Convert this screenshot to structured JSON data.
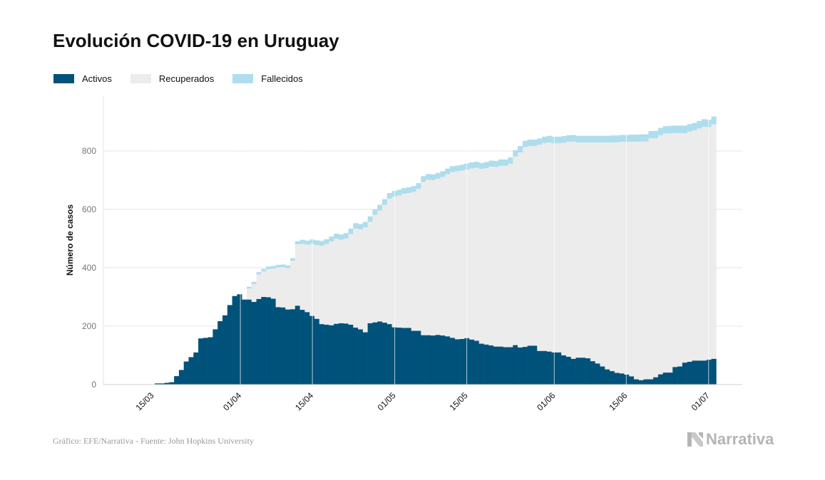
{
  "title": "Evolución COVID-19 en Uruguay",
  "legend": [
    {
      "label": "Activos",
      "color": "#01527a"
    },
    {
      "label": "Recuperados",
      "color": "#ececec"
    },
    {
      "label": "Fallecidos",
      "color": "#aedeed"
    }
  ],
  "footer": "Gráfico: EFE/Narrativa - Fuente: John Hopkins University",
  "logo_text": "Narrativa",
  "chart_data": {
    "type": "area",
    "title": "Evolución COVID-19 en Uruguay",
    "ylabel": "Número de casos",
    "xlabel": "",
    "ylim": [
      0,
      960
    ],
    "yticks": [
      0,
      200,
      400,
      600,
      800
    ],
    "grid": true,
    "legend_position": "top-left",
    "stacked": true,
    "x_start": "2020-03-13",
    "x_end": "2020-07-02",
    "xtick_labels": [
      {
        "date": "2020-03-15",
        "label": "15/03"
      },
      {
        "date": "2020-04-01",
        "label": "01/04"
      },
      {
        "date": "2020-04-15",
        "label": "15/04"
      },
      {
        "date": "2020-05-01",
        "label": "01/05"
      },
      {
        "date": "2020-05-15",
        "label": "15/05"
      },
      {
        "date": "2020-06-01",
        "label": "01/06"
      },
      {
        "date": "2020-06-15",
        "label": "15/06"
      },
      {
        "date": "2020-07-01",
        "label": "01/07"
      }
    ],
    "series": [
      {
        "name": "Activos",
        "color": "#01527a",
        "values": [
          [
            0,
            0,
            0,
            4,
            4,
            6,
            8,
            29,
            50,
            79,
            94,
            110,
            158,
            160,
            162,
            189,
            217,
            237,
            272,
            303,
            309,
            291,
            291,
            283,
            293,
            300,
            299,
            294,
            265,
            264,
            257,
            258,
            270,
            256,
            248,
            235,
            225,
            207,
            205,
            203,
            208,
            210,
            209,
            205,
            195,
            189,
            179,
            210,
            213,
            216,
            212,
            207,
            196,
            195,
            194,
            194,
            184,
            184,
            169,
            169,
            168,
            170,
            168,
            165,
            160,
            155,
            156,
            159,
            154,
            150,
            140,
            137,
            134,
            130,
            130,
            128,
            128,
            135,
            127,
            129,
            133,
            133,
            115,
            115,
            113,
            110,
            110,
            100,
            95,
            88,
            92,
            92,
            90,
            80,
            72,
            62,
            52,
            46,
            40,
            38,
            34,
            28,
            18,
            15,
            18,
            18,
            25,
            35,
            41,
            41,
            60,
            62,
            75,
            78,
            82,
            82,
            82,
            85,
            88
          ]
        ]
      },
      {
        "name": "Recuperados",
        "color": "#ececec",
        "values": [
          [
            0,
            0,
            0,
            0,
            0,
            0,
            0,
            0,
            0,
            0,
            0,
            0,
            0,
            0,
            0,
            0,
            0,
            0,
            0,
            0,
            0,
            0,
            38,
            61,
            84,
            87,
            96,
            103,
            136,
            138,
            142,
            166,
            210,
            226,
            231,
            246,
            253,
            268,
            276,
            287,
            291,
            286,
            291,
            310,
            339,
            342,
            359,
            347,
            368,
            380,
            403,
            429,
            447,
            452,
            459,
            462,
            476,
            486,
            525,
            532,
            532,
            535,
            543,
            555,
            568,
            575,
            577,
            577,
            586,
            592,
            598,
            604,
            612,
            615,
            619,
            621,
            628,
            646,
            668,
            684,
            684,
            684,
            706,
            712,
            716,
            716,
            716,
            728,
            736,
            744,
            737,
            737,
            739,
            749,
            757,
            767,
            777,
            783,
            789,
            793,
            797,
            803,
            813,
            817,
            814,
            825,
            819,
            819,
            819,
            819,
            801,
            799,
            786,
            788,
            788,
            795,
            801,
            796,
            803
          ]
        ]
      },
      {
        "name": "Fallecidos",
        "color": "#aedeed",
        "values": [
          [
            0,
            0,
            0,
            0,
            0,
            0,
            0,
            0,
            0,
            0,
            0,
            0,
            0,
            0,
            1,
            1,
            1,
            1,
            1,
            1,
            1,
            1,
            6,
            8,
            8,
            9,
            9,
            9,
            9,
            9,
            9,
            9,
            11,
            14,
            14,
            16,
            16,
            17,
            17,
            17,
            18,
            18,
            19,
            19,
            19,
            19,
            19,
            19,
            19,
            20,
            20,
            20,
            20,
            20,
            20,
            20,
            20,
            20,
            20,
            20,
            20,
            20,
            20,
            20,
            20,
            20,
            20,
            21,
            21,
            21,
            21,
            21,
            21,
            21,
            22,
            22,
            22,
            22,
            22,
            22,
            22,
            22,
            22,
            22,
            23,
            23,
            23,
            23,
            23,
            23,
            23,
            23,
            23,
            23,
            23,
            23,
            23,
            24,
            24,
            24,
            24,
            25,
            25,
            25,
            25,
            25,
            25,
            25,
            25,
            26,
            26,
            26,
            26,
            26,
            26,
            26,
            26,
            26,
            27
          ]
        ]
      }
    ]
  }
}
